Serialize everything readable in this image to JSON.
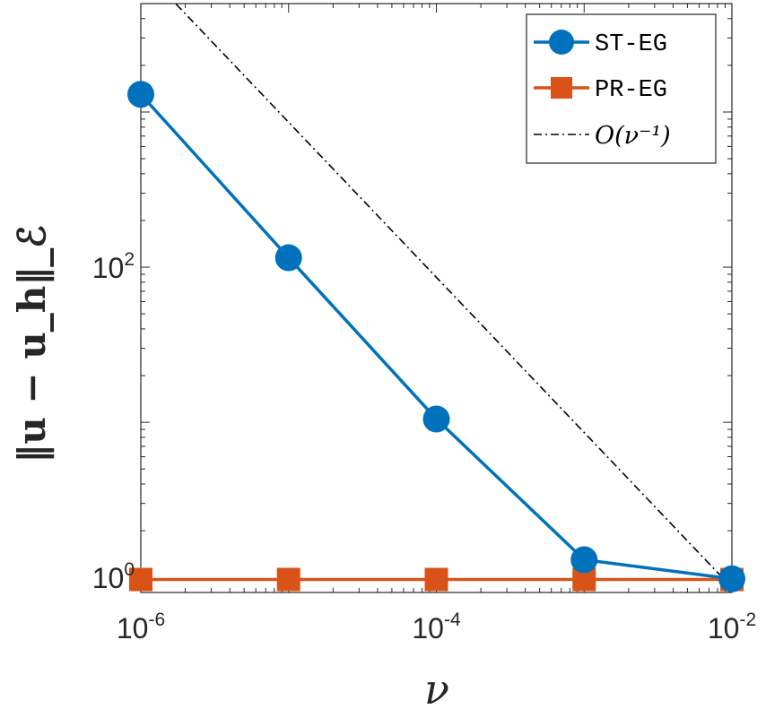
{
  "chart_data": {
    "type": "line",
    "xscale": "log",
    "yscale": "log",
    "xlim": [
      1e-06,
      0.01
    ],
    "ylim": [
      0.8,
      5000
    ],
    "xlabel": "ν",
    "ylabel": "‖u − u_h‖_ℰ",
    "xticks": [
      {
        "base": "10",
        "exp": "-6",
        "value": 1e-06
      },
      {
        "base": "10",
        "exp": "-4",
        "value": 0.0001
      },
      {
        "base": "10",
        "exp": "-2",
        "value": 0.01
      }
    ],
    "yticks": [
      {
        "base": "10",
        "exp": "0",
        "value": 1
      },
      {
        "base": "10",
        "exp": "2",
        "value": 100
      }
    ],
    "legend_position": "top-right",
    "grid": false,
    "series": [
      {
        "name": "ST-EG",
        "color": "#0072BD",
        "marker": "circle",
        "x": [
          1e-06,
          1e-05,
          0.0001,
          0.001,
          0.01
        ],
        "y": [
          1300,
          115,
          10.5,
          1.3,
          0.98
        ]
      },
      {
        "name": "PR-EG",
        "color": "#D95319",
        "marker": "square",
        "x": [
          1e-06,
          1e-05,
          0.0001,
          0.001,
          0.01
        ],
        "y": [
          0.97,
          0.97,
          0.97,
          0.97,
          0.97
        ]
      }
    ],
    "reference_line": {
      "name": "O(ν⁻¹)",
      "color": "#000000",
      "style": "dash-dot",
      "x": [
        1e-06,
        0.01
      ],
      "y": [
        8600,
        0.86
      ]
    }
  }
}
